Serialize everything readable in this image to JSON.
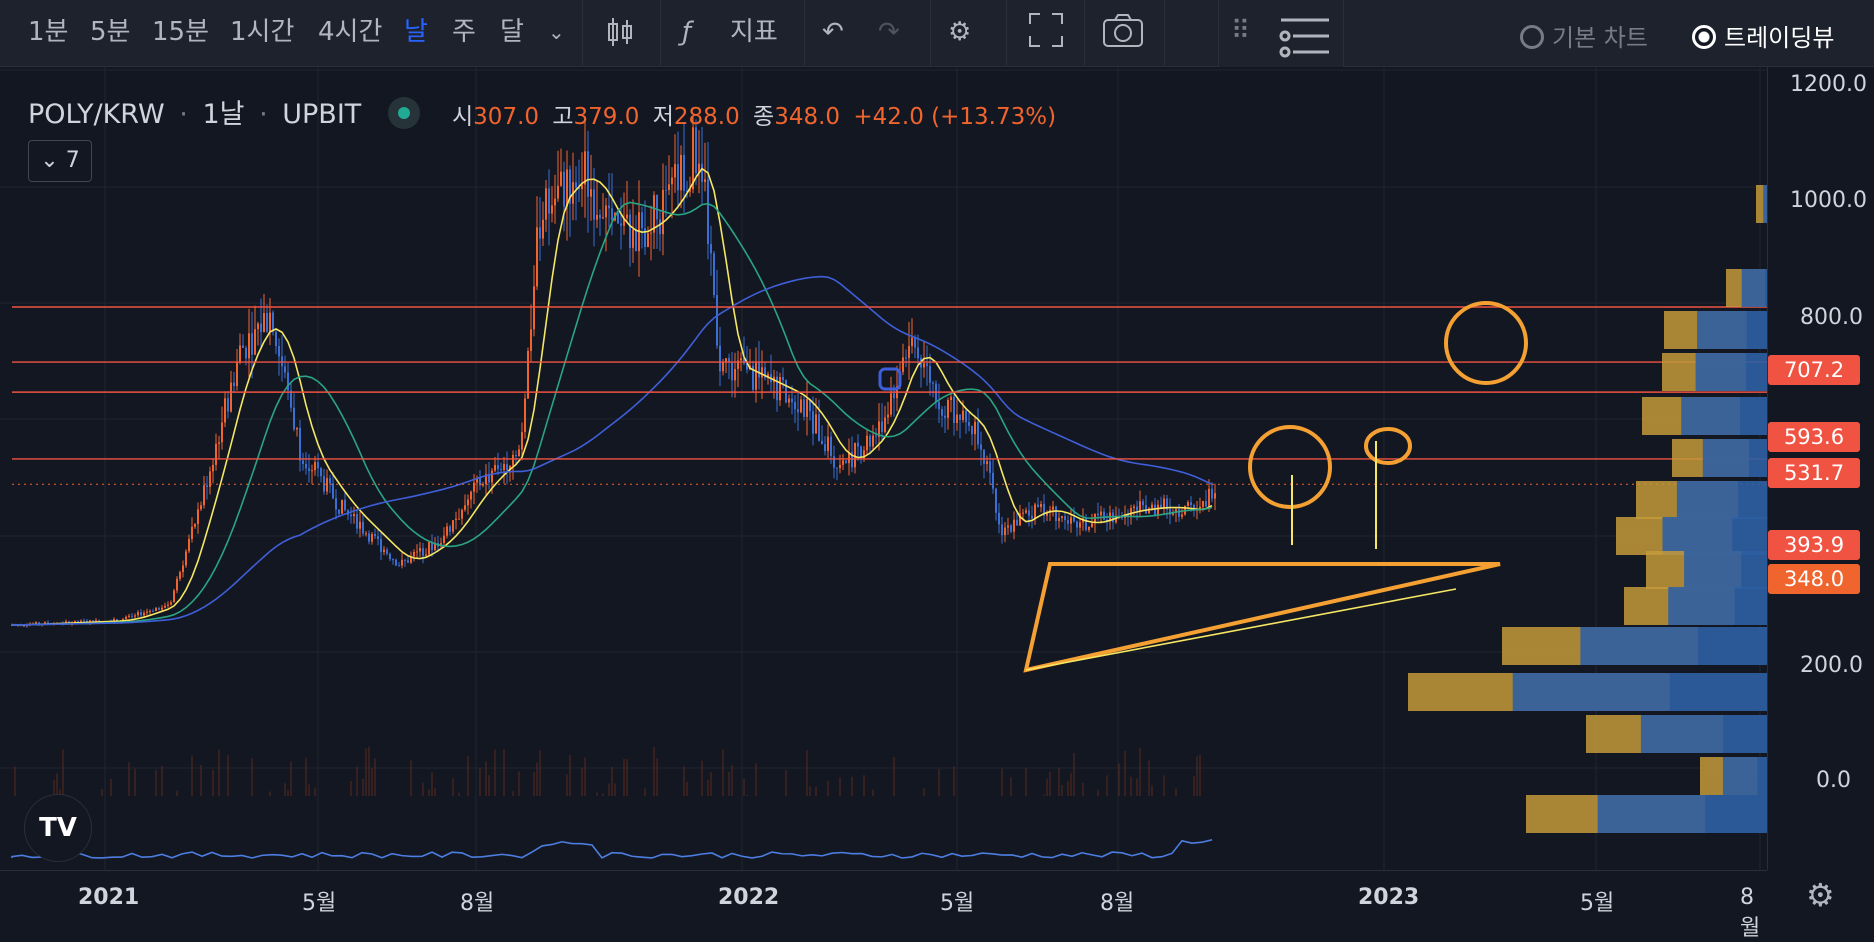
{
  "toolbar": {
    "intervals": [
      "1분",
      "5분",
      "15분",
      "1시간",
      "4시간",
      "날",
      "주",
      "달"
    ],
    "active_interval": "날",
    "indicators_label": "지표",
    "chart_mode_basic": "기본 차트",
    "chart_mode_tv": "트레이딩뷰"
  },
  "legend": {
    "symbol": "POLY/KRW",
    "interval": "1날",
    "exchange": "UPBIT",
    "open_label": "시",
    "open": "307.0",
    "high_label": "고",
    "high": "379.0",
    "low_label": "저",
    "low": "288.0",
    "close_label": "종",
    "close": "348.0",
    "change": "+42.0 (+13.73%)",
    "indicator_count": "7"
  },
  "price_axis": {
    "ticks": [
      "1200.0",
      "1000.0",
      "800.0",
      "200.0",
      "0.0"
    ],
    "tags": [
      {
        "value": "707.2",
        "color": "#f05342"
      },
      {
        "value": "593.6",
        "color": "#f05342"
      },
      {
        "value": "531.7",
        "color": "#f05342"
      },
      {
        "value": "393.9",
        "color": "#f05342"
      },
      {
        "value": "348.0",
        "color": "#f0642d"
      }
    ]
  },
  "time_axis": {
    "labels": [
      "2021",
      "5월",
      "8월",
      "2022",
      "5월",
      "8월",
      "2023",
      "5월",
      "8월"
    ]
  },
  "colors": {
    "up": "#f0642d",
    "down": "#3b6fd4",
    "ma_yellow": "#f5e663",
    "ma_green": "#2aa483",
    "ma_blue": "#3f5fd9",
    "drawing": "#f5a033",
    "hline": "#f05342"
  },
  "icons": [
    "chevron-down-icon",
    "candles-icon",
    "function-icon",
    "undo-icon",
    "redo-icon",
    "gear-icon",
    "fullscreen-icon",
    "camera-icon",
    "drag-handle-icon",
    "menu-icon",
    "tv-logo-icon",
    "settings-icon"
  ]
}
